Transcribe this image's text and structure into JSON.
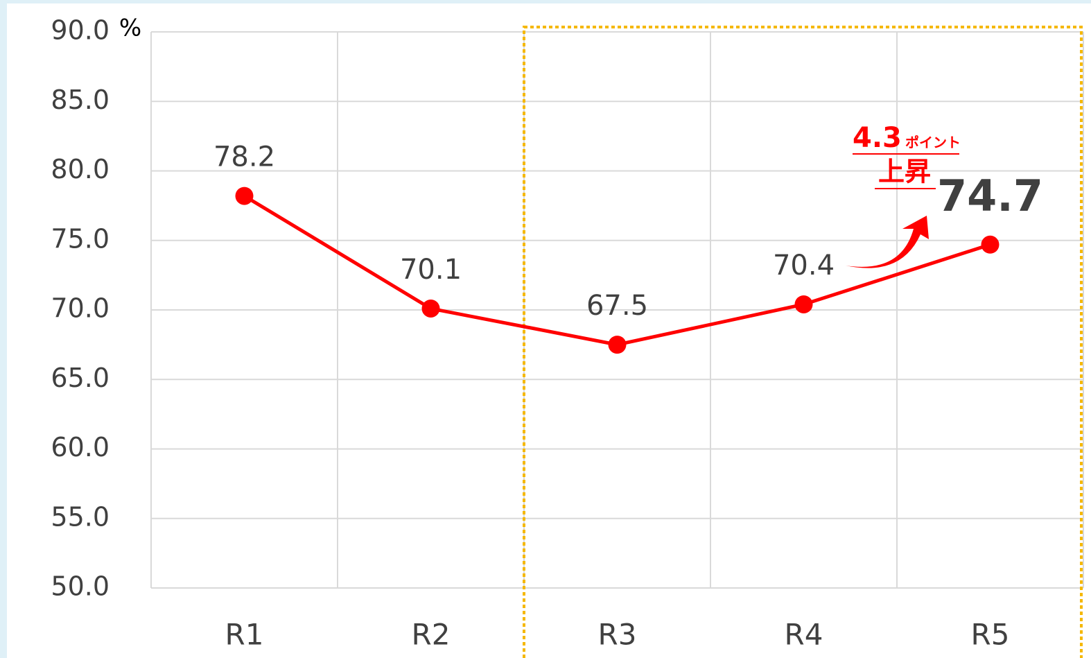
{
  "chart_data": {
    "type": "line",
    "unit_label": "%",
    "categories": [
      "R1",
      "R2",
      "R3",
      "R4",
      "R5"
    ],
    "series": [
      {
        "name": null,
        "color": "#ff0000",
        "values": [
          78.2,
          70.1,
          67.5,
          70.4,
          74.7
        ]
      }
    ],
    "ylim": [
      50,
      90
    ],
    "yticks": [
      {
        "value": 50,
        "label": "50.0"
      },
      {
        "value": 55,
        "label": "55.0"
      },
      {
        "value": 60,
        "label": "60.0"
      },
      {
        "value": 65,
        "label": "65.0"
      },
      {
        "value": 70,
        "label": "70.0"
      },
      {
        "value": 75,
        "label": "75.0"
      },
      {
        "value": 80,
        "label": "80.0"
      },
      {
        "value": 85,
        "label": "85.0"
      },
      {
        "value": 90,
        "label": "90.0"
      }
    ],
    "grid": true,
    "annotation": [
      "4.3",
      "ポイント",
      "上昇"
    ]
  }
}
